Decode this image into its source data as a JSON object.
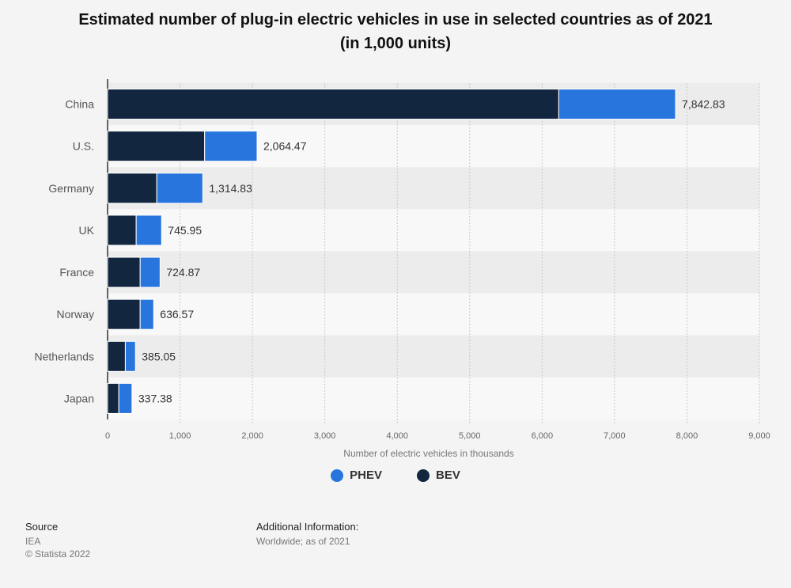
{
  "title": {
    "line1": "Estimated number of plug-in electric vehicles in use in selected countries as of 2021",
    "line2": "(in 1,000 units)"
  },
  "chart_data": {
    "type": "bar",
    "orientation": "horizontal",
    "stacked": true,
    "categories": [
      "China",
      "U.S.",
      "Germany",
      "UK",
      "France",
      "Norway",
      "Netherlands",
      "Japan"
    ],
    "series": [
      {
        "name": "BEV",
        "color": "#12263f",
        "values": [
          6230,
          1340,
          680,
          395,
          450,
          450,
          245,
          155
        ]
      },
      {
        "name": "PHEV",
        "color": "#2876dd",
        "values": [
          1612.83,
          724.47,
          634.83,
          350.95,
          274.87,
          186.57,
          140.05,
          182.38
        ]
      }
    ],
    "totals": [
      7842.83,
      2064.47,
      1314.83,
      745.95,
      724.87,
      636.57,
      385.05,
      337.38
    ],
    "total_labels": [
      "7,842.83",
      "2,064.47",
      "1,314.83",
      "745.95",
      "724.87",
      "636.57",
      "385.05",
      "337.38"
    ],
    "xlabel": "Number of electric vehicles in thousands",
    "xlim": [
      0,
      9000
    ],
    "xticks": [
      0,
      1000,
      2000,
      3000,
      4000,
      5000,
      6000,
      7000,
      8000,
      9000
    ],
    "xtick_labels": [
      "0",
      "1,000",
      "2,000",
      "3,000",
      "4,000",
      "5,000",
      "6,000",
      "7,000",
      "8,000",
      "9,000"
    ],
    "grid": true,
    "legend_placement": "bottom-center"
  },
  "legend": [
    {
      "label": "PHEV",
      "color": "#2876dd"
    },
    {
      "label": "BEV",
      "color": "#12263f"
    }
  ],
  "source": {
    "heading": "Source",
    "line1": "IEA",
    "line2": "© Statista 2022"
  },
  "additional": {
    "heading": "Additional Information:",
    "line1": "Worldwide; as of 2021"
  }
}
